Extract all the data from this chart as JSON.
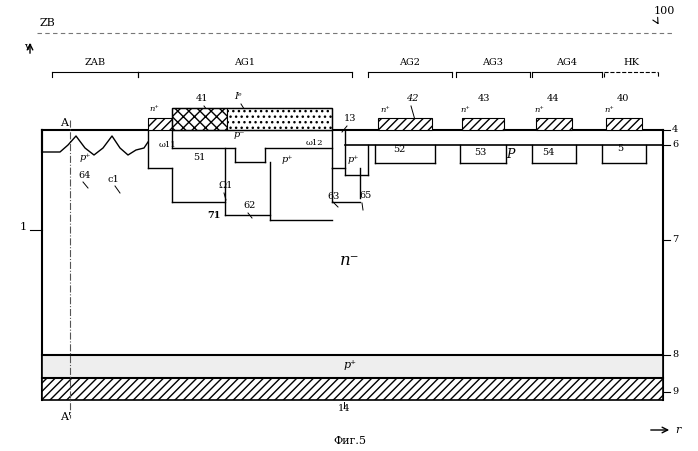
{
  "fig_width": 6.98,
  "fig_height": 4.51,
  "bg_color": "#ffffff",
  "line_color": "#000000",
  "title": "Фиг.5",
  "label_100": "100",
  "label_ZB": "ZB",
  "label_v": "v",
  "label_r": "r",
  "label_A": "A",
  "label_A_prime": "A'",
  "label_1": "1",
  "label_4": "4",
  "label_5": "5",
  "label_6": "6",
  "label_7": "7",
  "label_8": "8",
  "label_9": "9",
  "label_13": "13",
  "label_14": "14",
  "label_40": "40",
  "label_41": "41",
  "label_42": "42",
  "label_43": "43",
  "label_44": "44",
  "label_51": "51",
  "label_52": "52",
  "label_53": "53",
  "label_54": "54",
  "label_62": "62",
  "label_63": "63",
  "label_64": "64",
  "label_65": "65",
  "label_71": "71",
  "label_c1": "c1",
  "label_o1": "Ω1",
  "label_nm": "n⁻",
  "label_pp": "p⁺",
  "label_nplus": "n⁺",
  "label_pplus": "p⁺",
  "label_pminus": "p⁻",
  "label_P": "P",
  "label_ZAB": "ZAB",
  "label_AG1": "AG1",
  "label_AG2": "AG2",
  "label_AG3": "AG3",
  "label_AG4": "AG4",
  "label_HK": "HK",
  "label_Ie": "Iᵉ",
  "label_411": "ω11",
  "label_412": "ω12"
}
